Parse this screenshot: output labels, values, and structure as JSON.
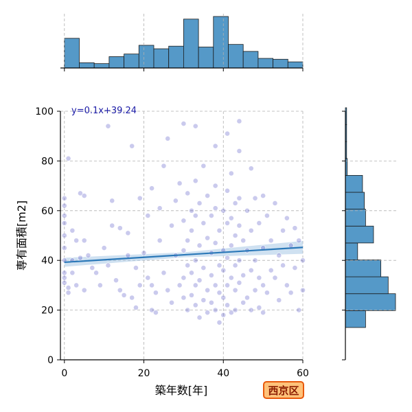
{
  "chart_data": {
    "type": "scatter",
    "xlabel": "築年数[年]",
    "ylabel": "専有面積[m2]",
    "xlim": [
      -1,
      60
    ],
    "ylim": [
      0,
      100
    ],
    "xticks": [
      "0",
      "20",
      "40",
      "60"
    ],
    "yticks": [
      "0",
      "20",
      "40",
      "60",
      "80",
      "100"
    ],
    "grid": true,
    "regression": {
      "label": "y=0.1x+39.24",
      "slope": 0.1,
      "intercept": 39.24
    },
    "marginal_x_hist": {
      "bin_edges": [
        0,
        3.75,
        7.5,
        11.25,
        15,
        18.75,
        22.5,
        26.25,
        30,
        33.75,
        37.5,
        41.25,
        45,
        48.75,
        52.5,
        56.25,
        60
      ],
      "counts": [
        34,
        6,
        5,
        13,
        16,
        26,
        22,
        25,
        56,
        24,
        59,
        27,
        19,
        11,
        10,
        7
      ]
    },
    "marginal_y_hist": {
      "bin_edges": [
        13,
        19.8,
        26.6,
        33.4,
        40.2,
        47.0,
        53.8,
        60.6,
        67.4,
        74.2,
        81.0,
        87.8,
        94.6,
        101.4
      ],
      "counts": [
        33,
        82,
        70,
        58,
        20,
        46,
        33,
        31,
        28,
        3,
        2,
        2,
        2
      ]
    },
    "points": [
      [
        0,
        65
      ],
      [
        0,
        62
      ],
      [
        0,
        58
      ],
      [
        0,
        55
      ],
      [
        0,
        50
      ],
      [
        0,
        45
      ],
      [
        0,
        40
      ],
      [
        0,
        35
      ],
      [
        0,
        33
      ],
      [
        0,
        31
      ],
      [
        1,
        81
      ],
      [
        1,
        29
      ],
      [
        1,
        27
      ],
      [
        2,
        52
      ],
      [
        2,
        40
      ],
      [
        2,
        35
      ],
      [
        3,
        48
      ],
      [
        3,
        30
      ],
      [
        4,
        67
      ],
      [
        4,
        41
      ],
      [
        5,
        66
      ],
      [
        5,
        48
      ],
      [
        5,
        28
      ],
      [
        6,
        42
      ],
      [
        7,
        37
      ],
      [
        8,
        35
      ],
      [
        9,
        30
      ],
      [
        10,
        45
      ],
      [
        11,
        94
      ],
      [
        11,
        38
      ],
      [
        12,
        64
      ],
      [
        12,
        54
      ],
      [
        13,
        32
      ],
      [
        14,
        53
      ],
      [
        14,
        28
      ],
      [
        15,
        26
      ],
      [
        16,
        51
      ],
      [
        16,
        42
      ],
      [
        17,
        86
      ],
      [
        17,
        25
      ],
      [
        18,
        37
      ],
      [
        18,
        21
      ],
      [
        19,
        65
      ],
      [
        19,
        30
      ],
      [
        20,
        43
      ],
      [
        21,
        58
      ],
      [
        21,
        33
      ],
      [
        22,
        69
      ],
      [
        22,
        30
      ],
      [
        22,
        20
      ],
      [
        23,
        27
      ],
      [
        23,
        19
      ],
      [
        24,
        48
      ],
      [
        24,
        61
      ],
      [
        25,
        78
      ],
      [
        25,
        35
      ],
      [
        26,
        89
      ],
      [
        26,
        28
      ],
      [
        27,
        54
      ],
      [
        27,
        23
      ],
      [
        28,
        64
      ],
      [
        28,
        42
      ],
      [
        29,
        71
      ],
      [
        29,
        30
      ],
      [
        30,
        95
      ],
      [
        30,
        56
      ],
      [
        30,
        44
      ],
      [
        30,
        33
      ],
      [
        30,
        25
      ],
      [
        31,
        67
      ],
      [
        31,
        48
      ],
      [
        31,
        38
      ],
      [
        31,
        20
      ],
      [
        32,
        60
      ],
      [
        32,
        52
      ],
      [
        32,
        35
      ],
      [
        32,
        26
      ],
      [
        33,
        94
      ],
      [
        33,
        72
      ],
      [
        33,
        58
      ],
      [
        33,
        40
      ],
      [
        33,
        30
      ],
      [
        33,
        22
      ],
      [
        34,
        63
      ],
      [
        34,
        46
      ],
      [
        34,
        32
      ],
      [
        34,
        17
      ],
      [
        35,
        78
      ],
      [
        35,
        55
      ],
      [
        35,
        37
      ],
      [
        35,
        24
      ],
      [
        36,
        66
      ],
      [
        36,
        49
      ],
      [
        36,
        28
      ],
      [
        36,
        19
      ],
      [
        37,
        58
      ],
      [
        37,
        43
      ],
      [
        37,
        34
      ],
      [
        37,
        23
      ],
      [
        38,
        86
      ],
      [
        38,
        70
      ],
      [
        38,
        61
      ],
      [
        38,
        47
      ],
      [
        38,
        30
      ],
      [
        38,
        20
      ],
      [
        39,
        52
      ],
      [
        39,
        38
      ],
      [
        39,
        27
      ],
      [
        39,
        15
      ],
      [
        40,
        60
      ],
      [
        40,
        44
      ],
      [
        40,
        36
      ],
      [
        40,
        25
      ],
      [
        40,
        18
      ],
      [
        41,
        91
      ],
      [
        41,
        68
      ],
      [
        41,
        55
      ],
      [
        41,
        41
      ],
      [
        41,
        30
      ],
      [
        41,
        22
      ],
      [
        42,
        75
      ],
      [
        42,
        57
      ],
      [
        42,
        46
      ],
      [
        42,
        33
      ],
      [
        42,
        19
      ],
      [
        43,
        63
      ],
      [
        43,
        50
      ],
      [
        43,
        38
      ],
      [
        43,
        28
      ],
      [
        43,
        20
      ],
      [
        44,
        96
      ],
      [
        44,
        84
      ],
      [
        44,
        65
      ],
      [
        44,
        54
      ],
      [
        44,
        40
      ],
      [
        44,
        31
      ],
      [
        45,
        48
      ],
      [
        45,
        34
      ],
      [
        45,
        23
      ],
      [
        46,
        60
      ],
      [
        46,
        44
      ],
      [
        46,
        25
      ],
      [
        47,
        77
      ],
      [
        47,
        52
      ],
      [
        47,
        36
      ],
      [
        47,
        20
      ],
      [
        48,
        65
      ],
      [
        48,
        40
      ],
      [
        48,
        28
      ],
      [
        49,
        55
      ],
      [
        49,
        33
      ],
      [
        49,
        21
      ],
      [
        50,
        66
      ],
      [
        50,
        45
      ],
      [
        50,
        30
      ],
      [
        50,
        19
      ],
      [
        51,
        58
      ],
      [
        51,
        27
      ],
      [
        52,
        48
      ],
      [
        52,
        36
      ],
      [
        53,
        63
      ],
      [
        53,
        33
      ],
      [
        54,
        42
      ],
      [
        54,
        24
      ],
      [
        55,
        52
      ],
      [
        55,
        38
      ],
      [
        56,
        57
      ],
      [
        56,
        30
      ],
      [
        57,
        46
      ],
      [
        57,
        27
      ],
      [
        58,
        53
      ],
      [
        58,
        37
      ],
      [
        59,
        48
      ],
      [
        59,
        20
      ],
      [
        60,
        40
      ],
      [
        60,
        28
      ]
    ]
  },
  "badge": {
    "label": "西京区",
    "bg": "#ffc27a",
    "border": "#e8590c",
    "text": "#8a1c00"
  },
  "colors": {
    "points": "#4040c0",
    "bars": "#5599c8",
    "bar_edge": "#1a1a1a",
    "regression": "#2a78b8",
    "ci_band": "#a8c9e6"
  }
}
